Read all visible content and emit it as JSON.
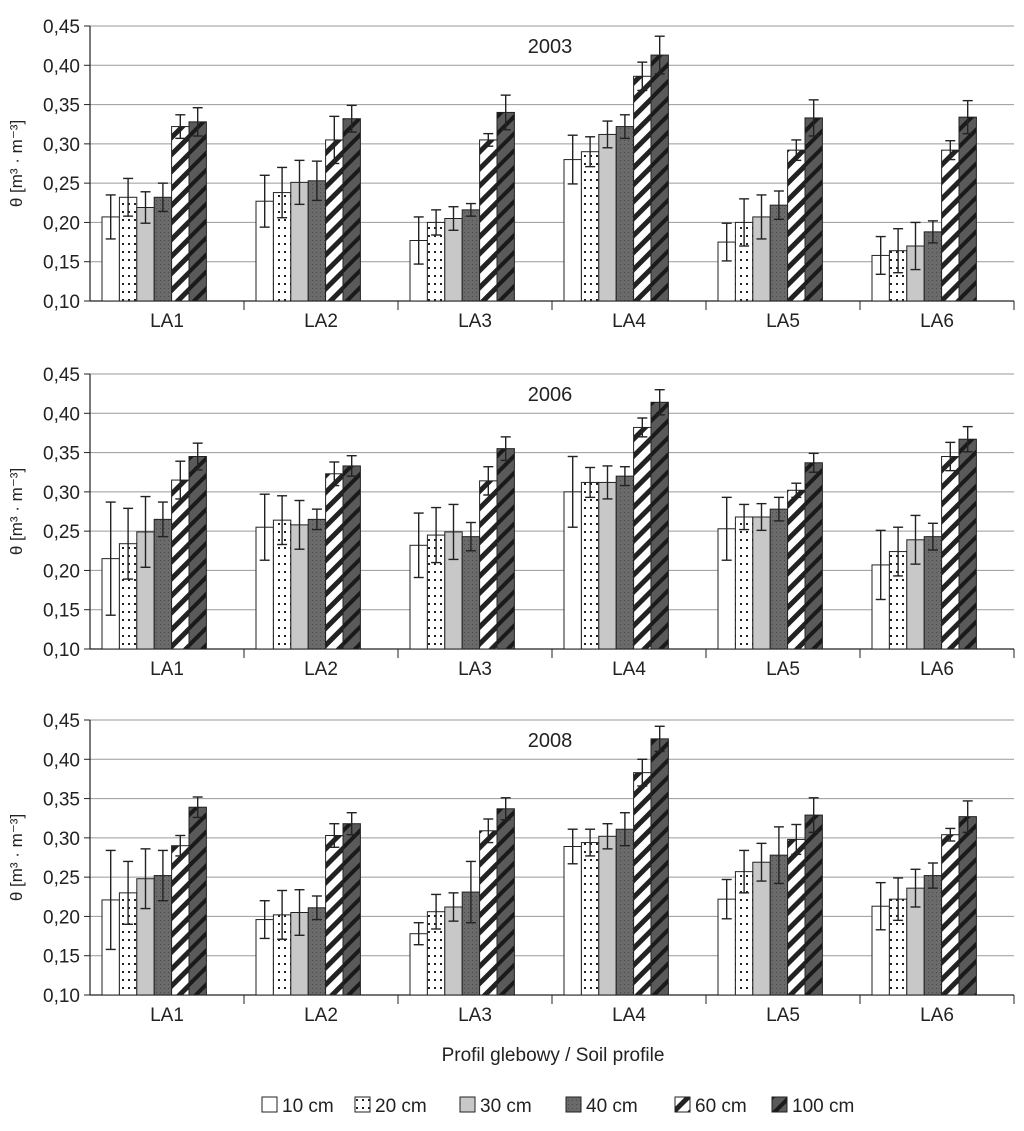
{
  "figure": {
    "x_axis_label": "Profil glebowy / Soil profile",
    "legend": [
      {
        "label": "10 cm",
        "pattern": "p10"
      },
      {
        "label": "20 cm",
        "pattern": "p20"
      },
      {
        "label": "30 cm",
        "pattern": "p30"
      },
      {
        "label": "40 cm",
        "pattern": "p40"
      },
      {
        "label": "60 cm",
        "pattern": "p60"
      },
      {
        "label": "100 cm",
        "pattern": "p100"
      }
    ]
  },
  "chart_data": [
    {
      "type": "bar",
      "title": "2003",
      "ylabel": "θ [m³ · m⁻³]",
      "ylim": [
        0.1,
        0.45
      ],
      "yticks": [
        "0,10",
        "0,15",
        "0,20",
        "0,25",
        "0,30",
        "0,35",
        "0,40",
        "0,45"
      ],
      "categories": [
        "LA1",
        "LA2",
        "LA3",
        "LA4",
        "LA5",
        "LA6"
      ],
      "series": [
        {
          "name": "10 cm",
          "values": [
            0.207,
            0.227,
            0.177,
            0.28,
            0.175,
            0.158
          ],
          "errors": [
            0.028,
            0.033,
            0.03,
            0.031,
            0.024,
            0.024
          ]
        },
        {
          "name": "20 cm",
          "values": [
            0.232,
            0.238,
            0.2,
            0.29,
            0.2,
            0.164
          ],
          "errors": [
            0.024,
            0.032,
            0.016,
            0.019,
            0.03,
            0.028
          ]
        },
        {
          "name": "30 cm",
          "values": [
            0.219,
            0.251,
            0.205,
            0.312,
            0.207,
            0.17
          ],
          "errors": [
            0.02,
            0.028,
            0.015,
            0.017,
            0.028,
            0.03
          ]
        },
        {
          "name": "40 cm",
          "values": [
            0.232,
            0.253,
            0.216,
            0.322,
            0.222,
            0.188
          ],
          "errors": [
            0.018,
            0.025,
            0.008,
            0.015,
            0.018,
            0.014
          ]
        },
        {
          "name": "60 cm",
          "values": [
            0.322,
            0.305,
            0.305,
            0.386,
            0.292,
            0.292
          ],
          "errors": [
            0.015,
            0.03,
            0.008,
            0.018,
            0.013,
            0.012
          ]
        },
        {
          "name": "100 cm",
          "values": [
            0.328,
            0.332,
            0.34,
            0.413,
            0.333,
            0.334
          ],
          "errors": [
            0.018,
            0.017,
            0.022,
            0.024,
            0.023,
            0.021
          ]
        }
      ]
    },
    {
      "type": "bar",
      "title": "2006",
      "ylabel": "θ [m³ · m⁻³]",
      "ylim": [
        0.1,
        0.45
      ],
      "yticks": [
        "0,10",
        "0,15",
        "0,20",
        "0,25",
        "0,30",
        "0,35",
        "0,40",
        "0,45"
      ],
      "categories": [
        "LA1",
        "LA2",
        "LA3",
        "LA4",
        "LA5",
        "LA6"
      ],
      "series": [
        {
          "name": "10 cm",
          "values": [
            0.215,
            0.255,
            0.232,
            0.3,
            0.253,
            0.207
          ],
          "errors": [
            0.072,
            0.042,
            0.041,
            0.045,
            0.04,
            0.044
          ]
        },
        {
          "name": "20 cm",
          "values": [
            0.234,
            0.264,
            0.245,
            0.312,
            0.268,
            0.224
          ],
          "errors": [
            0.045,
            0.031,
            0.035,
            0.019,
            0.016,
            0.031
          ]
        },
        {
          "name": "30 cm",
          "values": [
            0.249,
            0.258,
            0.249,
            0.312,
            0.268,
            0.239
          ],
          "errors": [
            0.045,
            0.031,
            0.035,
            0.021,
            0.017,
            0.031
          ]
        },
        {
          "name": "40 cm",
          "values": [
            0.265,
            0.265,
            0.243,
            0.32,
            0.278,
            0.243
          ],
          "errors": [
            0.022,
            0.013,
            0.018,
            0.012,
            0.015,
            0.017
          ]
        },
        {
          "name": "60 cm",
          "values": [
            0.315,
            0.323,
            0.314,
            0.382,
            0.302,
            0.345
          ],
          "errors": [
            0.024,
            0.015,
            0.018,
            0.012,
            0.009,
            0.018
          ]
        },
        {
          "name": "100 cm",
          "values": [
            0.345,
            0.333,
            0.355,
            0.414,
            0.337,
            0.367
          ],
          "errors": [
            0.017,
            0.013,
            0.015,
            0.016,
            0.012,
            0.016
          ]
        }
      ]
    },
    {
      "type": "bar",
      "title": "2008",
      "ylabel": "θ [m³ · m⁻³]",
      "ylim": [
        0.1,
        0.45
      ],
      "yticks": [
        "0,10",
        "0,15",
        "0,20",
        "0,25",
        "0,30",
        "0,35",
        "0,40",
        "0,45"
      ],
      "categories": [
        "LA1",
        "LA2",
        "LA3",
        "LA4",
        "LA5",
        "LA6"
      ],
      "series": [
        {
          "name": "10 cm",
          "values": [
            0.221,
            0.196,
            0.178,
            0.289,
            0.222,
            0.213
          ],
          "errors": [
            0.063,
            0.024,
            0.014,
            0.022,
            0.025,
            0.03
          ]
        },
        {
          "name": "20 cm",
          "values": [
            0.23,
            0.202,
            0.206,
            0.294,
            0.257,
            0.222
          ],
          "errors": [
            0.04,
            0.031,
            0.022,
            0.017,
            0.027,
            0.027
          ]
        },
        {
          "name": "30 cm",
          "values": [
            0.248,
            0.205,
            0.212,
            0.302,
            0.269,
            0.236
          ],
          "errors": [
            0.038,
            0.029,
            0.018,
            0.016,
            0.024,
            0.024
          ]
        },
        {
          "name": "40 cm",
          "values": [
            0.252,
            0.211,
            0.231,
            0.311,
            0.278,
            0.252
          ],
          "errors": [
            0.032,
            0.015,
            0.039,
            0.021,
            0.036,
            0.016
          ]
        },
        {
          "name": "60 cm",
          "values": [
            0.29,
            0.303,
            0.309,
            0.383,
            0.298,
            0.304
          ],
          "errors": [
            0.013,
            0.015,
            0.015,
            0.017,
            0.019,
            0.008
          ]
        },
        {
          "name": "100 cm",
          "values": [
            0.339,
            0.318,
            0.337,
            0.426,
            0.329,
            0.327
          ],
          "errors": [
            0.013,
            0.014,
            0.014,
            0.016,
            0.022,
            0.02
          ]
        }
      ]
    }
  ]
}
